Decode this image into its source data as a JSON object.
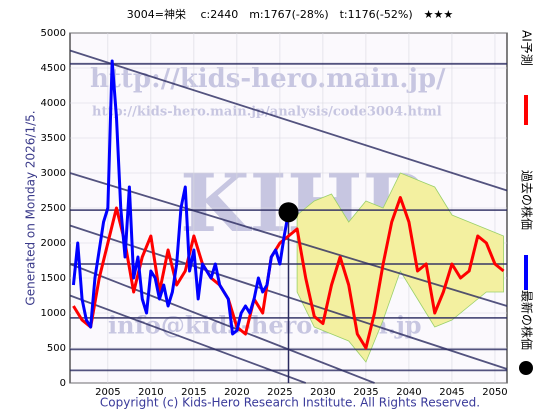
{
  "chart_data": {
    "type": "line",
    "title": "3004=神栄　 c:2440　m:1767(-28%)　t:1176(-52%)　★★★",
    "side_label": "Generated on Monday 2026/1/5.",
    "footer": "Copyright (c) Kids-Hero Research Institute. All Rights Reserved.",
    "watermarks": [
      "http://kids-hero.main.jp/",
      "http://kids-hero.main.jp/analysis/code3004.html",
      "KIHR",
      "info@kids-hero.main.jp"
    ],
    "xlim": [
      2000.6,
      2051.4
    ],
    "ylim": [
      0,
      5000
    ],
    "xticks": [
      2005,
      2010,
      2015,
      2020,
      2025,
      2030,
      2035,
      2040,
      2045,
      2050
    ],
    "yticks": [
      0,
      500,
      1000,
      1500,
      2000,
      2500,
      3000,
      3500,
      4000,
      4500,
      5000
    ],
    "grid": true,
    "band": {
      "color": "#f3f0a0",
      "x": [
        2027,
        2029,
        2031,
        2033,
        2035,
        2037,
        2039,
        2041,
        2043,
        2045,
        2047,
        2049,
        2051
      ],
      "upper": [
        2400,
        2600,
        2700,
        2300,
        2600,
        2500,
        3000,
        2900,
        2800,
        2400,
        2300,
        2200,
        2100
      ],
      "lower": [
        1300,
        800,
        700,
        600,
        300,
        900,
        1600,
        1200,
        800,
        900,
        1100,
        1300,
        1300
      ]
    },
    "hlines": {
      "color": "#2a2a60",
      "values": [
        4560,
        2470,
        1700,
        930,
        480,
        180
      ]
    },
    "trend_lines": {
      "color": "#2a2a60",
      "segments": [
        [
          2000.6,
          4750,
          2051.4,
          2750
        ],
        [
          2000.6,
          3000,
          2051.4,
          1100
        ],
        [
          2000.6,
          2250,
          2051.4,
          200
        ],
        [
          2000.6,
          1700,
          2036,
          0
        ],
        [
          2000.6,
          1250,
          2028,
          0
        ]
      ]
    },
    "series": [
      {
        "name": "AI予測",
        "color": "#ff0000",
        "x": [
          2001,
          2002,
          2003,
          2004,
          2005,
          2006,
          2007,
          2008,
          2009,
          2010,
          2011,
          2012,
          2013,
          2014,
          2015,
          2016,
          2017,
          2018,
          2019,
          2020,
          2021,
          2022,
          2023,
          2024,
          2025,
          2026,
          2027,
          2028,
          2029,
          2030,
          2031,
          2032,
          2033,
          2034,
          2035,
          2036,
          2037,
          2038,
          2039,
          2040,
          2041,
          2042,
          2043,
          2044,
          2045,
          2046,
          2047,
          2048,
          2049,
          2050,
          2051
        ],
        "values": [
          1100,
          900,
          800,
          1500,
          2000,
          2500,
          2000,
          1300,
          1800,
          2100,
          1300,
          1900,
          1400,
          1600,
          2100,
          1700,
          1500,
          1400,
          1200,
          800,
          700,
          1200,
          1000,
          1800,
          2000,
          2100,
          2200,
          1500,
          950,
          850,
          1400,
          1800,
          1400,
          700,
          500,
          1000,
          1700,
          2300,
          2650,
          2300,
          1600,
          1700,
          1000,
          1300,
          1700,
          1500,
          1600,
          2100,
          2000,
          1700,
          1600
        ]
      },
      {
        "name": "過去の株価",
        "color": "#0000ff",
        "x": [
          2001,
          2001.5,
          2002,
          2002.5,
          2003,
          2003.5,
          2004,
          2004.5,
          2005,
          2005.5,
          2006,
          2006.5,
          2007,
          2007.5,
          2008,
          2008.5,
          2009,
          2009.5,
          2010,
          2010.5,
          2011,
          2011.5,
          2012,
          2012.5,
          2013,
          2013.5,
          2014,
          2014.5,
          2015,
          2015.5,
          2016,
          2016.5,
          2017,
          2017.5,
          2018,
          2018.5,
          2019,
          2019.5,
          2020,
          2020.5,
          2021,
          2021.5,
          2022,
          2022.5,
          2023,
          2023.5,
          2024,
          2024.5,
          2025,
          2025.5,
          2026
        ],
        "values": [
          1400,
          2000,
          1200,
          900,
          800,
          1500,
          1900,
          2300,
          2500,
          4600,
          3800,
          2500,
          1800,
          2800,
          1500,
          1800,
          1200,
          1000,
          1600,
          1500,
          1200,
          1400,
          1100,
          1300,
          1700,
          2500,
          2800,
          1600,
          1900,
          1200,
          1700,
          1600,
          1500,
          1700,
          1400,
          1300,
          1200,
          700,
          750,
          1000,
          1100,
          1000,
          1200,
          1500,
          1300,
          1400,
          1800,
          1900,
          1700,
          2100,
          2440
        ]
      }
    ],
    "latest": {
      "name": "最新の株価",
      "color": "#000000",
      "x": 2026,
      "value": 2440
    }
  }
}
